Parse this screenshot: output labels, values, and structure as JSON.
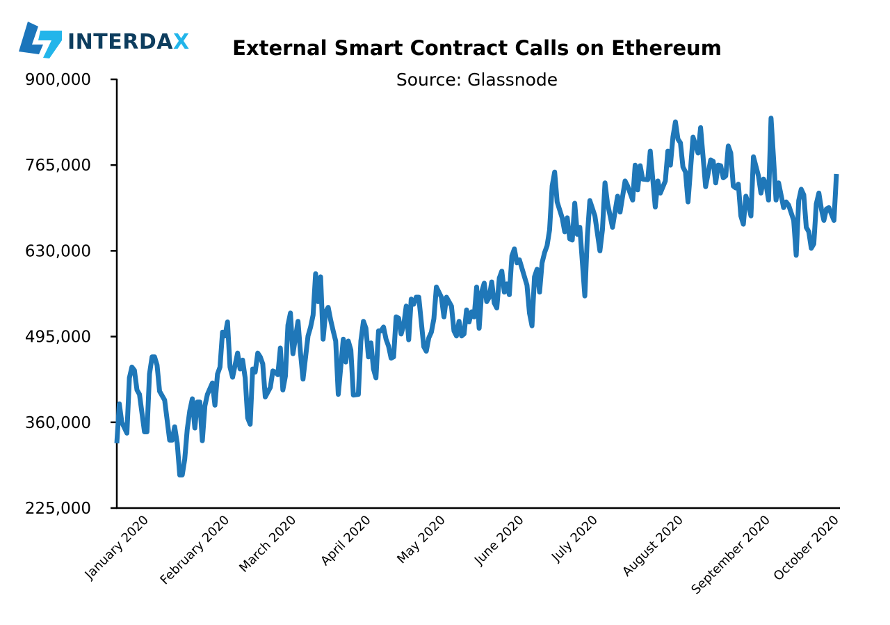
{
  "logo": {
    "text": "INTERDAX",
    "main_color": "#0d3d5e",
    "accent_color": "#22b5ea",
    "mark_colors": [
      "#1b75bb",
      "#22b5ea"
    ]
  },
  "chart_data": {
    "type": "line",
    "title": "External Smart Contract Calls on Ethereum",
    "subtitle": "Source: Glassnode",
    "xlabel": "",
    "ylabel": "",
    "xlim": [
      "2020-01-01",
      "2020-10-13"
    ],
    "ylim": [
      225000,
      900000
    ],
    "yticks": [
      225000,
      360000,
      495000,
      630000,
      765000,
      900000
    ],
    "ytick_labels": [
      "225,000",
      "360,000",
      "495,000",
      "630,000",
      "765,000",
      "900,000"
    ],
    "xticks": [
      "2020-01-01",
      "2020-02-01",
      "2020-03-01",
      "2020-04-01",
      "2020-05-01",
      "2020-06-01",
      "2020-07-01",
      "2020-08-01",
      "2020-09-01",
      "2020-10-01"
    ],
    "xtick_labels": [
      "January 2020",
      "February 2020",
      "March 2020",
      "April 2020",
      "May 2020",
      "June 2020",
      "July 2020",
      "August 2020",
      "September 2020",
      "October 2020"
    ],
    "grid": false,
    "legend": "none",
    "line_color": "#1f77b8",
    "series": [
      {
        "points": [
          [
            "2020-01-01",
            327000
          ],
          [
            "2020-01-02",
            389000
          ],
          [
            "2020-01-03",
            360000
          ],
          [
            "2020-01-05",
            343000
          ],
          [
            "2020-01-06",
            430000
          ],
          [
            "2020-01-07",
            447000
          ],
          [
            "2020-01-08",
            442000
          ],
          [
            "2020-01-09",
            411000
          ],
          [
            "2020-01-10",
            404000
          ],
          [
            "2020-01-12",
            345000
          ],
          [
            "2020-01-13",
            345000
          ],
          [
            "2020-01-14",
            436000
          ],
          [
            "2020-01-15",
            463000
          ],
          [
            "2020-01-16",
            463000
          ],
          [
            "2020-01-17",
            450000
          ],
          [
            "2020-01-18",
            409000
          ],
          [
            "2020-01-20",
            395000
          ],
          [
            "2020-01-22",
            332000
          ],
          [
            "2020-01-23",
            332000
          ],
          [
            "2020-01-24",
            353000
          ],
          [
            "2020-01-25",
            327000
          ],
          [
            "2020-01-26",
            277000
          ],
          [
            "2020-01-27",
            277000
          ],
          [
            "2020-01-28",
            302000
          ],
          [
            "2020-01-29",
            349000
          ],
          [
            "2020-01-30",
            378000
          ],
          [
            "2020-01-31",
            397000
          ],
          [
            "2020-02-01",
            351000
          ],
          [
            "2020-02-02",
            392000
          ],
          [
            "2020-02-03",
            392000
          ],
          [
            "2020-02-04",
            331000
          ],
          [
            "2020-02-05",
            386000
          ],
          [
            "2020-02-06",
            404000
          ],
          [
            "2020-02-08",
            422000
          ],
          [
            "2020-02-09",
            387000
          ],
          [
            "2020-02-10",
            436000
          ],
          [
            "2020-02-11",
            447000
          ],
          [
            "2020-02-12",
            502000
          ],
          [
            "2020-02-13",
            496000
          ],
          [
            "2020-02-14",
            518000
          ],
          [
            "2020-02-15",
            447000
          ],
          [
            "2020-02-16",
            431000
          ],
          [
            "2020-02-18",
            469000
          ],
          [
            "2020-02-19",
            444000
          ],
          [
            "2020-02-20",
            458000
          ],
          [
            "2020-02-21",
            430000
          ],
          [
            "2020-02-22",
            367000
          ],
          [
            "2020-02-23",
            357000
          ],
          [
            "2020-02-24",
            444000
          ],
          [
            "2020-02-25",
            439000
          ],
          [
            "2020-02-26",
            469000
          ],
          [
            "2020-02-27",
            463000
          ],
          [
            "2020-02-28",
            452000
          ],
          [
            "2020-02-29",
            400000
          ],
          [
            "2020-03-02",
            415000
          ],
          [
            "2020-03-03",
            441000
          ],
          [
            "2020-03-04",
            439000
          ],
          [
            "2020-03-05",
            435000
          ],
          [
            "2020-03-06",
            477000
          ],
          [
            "2020-03-07",
            411000
          ],
          [
            "2020-03-08",
            433000
          ],
          [
            "2020-03-09",
            513000
          ],
          [
            "2020-03-10",
            532000
          ],
          [
            "2020-03-11",
            468000
          ],
          [
            "2020-03-13",
            519000
          ],
          [
            "2020-03-14",
            469000
          ],
          [
            "2020-03-15",
            428000
          ],
          [
            "2020-03-17",
            496000
          ],
          [
            "2020-03-18",
            510000
          ],
          [
            "2020-03-19",
            529000
          ],
          [
            "2020-03-20",
            594000
          ],
          [
            "2020-03-21",
            550000
          ],
          [
            "2020-03-22",
            589000
          ],
          [
            "2020-03-23",
            491000
          ],
          [
            "2020-03-24",
            534000
          ],
          [
            "2020-03-25",
            541000
          ],
          [
            "2020-03-26",
            521000
          ],
          [
            "2020-03-27",
            504000
          ],
          [
            "2020-03-28",
            488000
          ],
          [
            "2020-03-29",
            404000
          ],
          [
            "2020-03-31",
            491000
          ],
          [
            "2020-04-01",
            455000
          ],
          [
            "2020-04-02",
            488000
          ],
          [
            "2020-04-03",
            474000
          ],
          [
            "2020-04-04",
            403000
          ],
          [
            "2020-04-06",
            404000
          ],
          [
            "2020-04-07",
            488000
          ],
          [
            "2020-04-08",
            519000
          ],
          [
            "2020-04-09",
            508000
          ],
          [
            "2020-04-10",
            463000
          ],
          [
            "2020-04-11",
            485000
          ],
          [
            "2020-04-12",
            444000
          ],
          [
            "2020-04-13",
            430000
          ],
          [
            "2020-04-14",
            504000
          ],
          [
            "2020-04-15",
            504000
          ],
          [
            "2020-04-16",
            510000
          ],
          [
            "2020-04-17",
            491000
          ],
          [
            "2020-04-18",
            480000
          ],
          [
            "2020-04-19",
            461000
          ],
          [
            "2020-04-20",
            463000
          ],
          [
            "2020-04-21",
            526000
          ],
          [
            "2020-04-22",
            524000
          ],
          [
            "2020-04-23",
            499000
          ],
          [
            "2020-04-24",
            513000
          ],
          [
            "2020-04-25",
            543000
          ],
          [
            "2020-04-26",
            490000
          ],
          [
            "2020-04-27",
            554000
          ],
          [
            "2020-04-28",
            546000
          ],
          [
            "2020-04-29",
            557000
          ],
          [
            "2020-04-30",
            557000
          ],
          [
            "2020-05-02",
            479000
          ],
          [
            "2020-05-03",
            472000
          ],
          [
            "2020-05-04",
            493000
          ],
          [
            "2020-05-05",
            502000
          ],
          [
            "2020-05-06",
            523000
          ],
          [
            "2020-05-07",
            573000
          ],
          [
            "2020-05-09",
            557000
          ],
          [
            "2020-05-10",
            526000
          ],
          [
            "2020-05-11",
            557000
          ],
          [
            "2020-05-13",
            543000
          ],
          [
            "2020-05-14",
            504000
          ],
          [
            "2020-05-15",
            496000
          ],
          [
            "2020-05-16",
            519000
          ],
          [
            "2020-05-17",
            496000
          ],
          [
            "2020-05-18",
            499000
          ],
          [
            "2020-05-19",
            537000
          ],
          [
            "2020-05-20",
            518000
          ],
          [
            "2020-05-21",
            534000
          ],
          [
            "2020-05-22",
            526000
          ],
          [
            "2020-05-23",
            573000
          ],
          [
            "2020-05-24",
            508000
          ],
          [
            "2020-05-25",
            565000
          ],
          [
            "2020-05-26",
            579000
          ],
          [
            "2020-05-27",
            550000
          ],
          [
            "2020-05-28",
            557000
          ],
          [
            "2020-05-29",
            581000
          ],
          [
            "2020-05-30",
            548000
          ],
          [
            "2020-05-31",
            540000
          ],
          [
            "2020-06-01",
            587000
          ],
          [
            "2020-06-02",
            598000
          ],
          [
            "2020-06-03",
            565000
          ],
          [
            "2020-06-04",
            578000
          ],
          [
            "2020-06-05",
            561000
          ],
          [
            "2020-06-06",
            622000
          ],
          [
            "2020-06-07",
            633000
          ],
          [
            "2020-06-08",
            611000
          ],
          [
            "2020-06-09",
            616000
          ],
          [
            "2020-06-12",
            576000
          ],
          [
            "2020-06-13",
            532000
          ],
          [
            "2020-06-14",
            512000
          ],
          [
            "2020-06-15",
            589000
          ],
          [
            "2020-06-16",
            601000
          ],
          [
            "2020-06-17",
            565000
          ],
          [
            "2020-06-18",
            611000
          ],
          [
            "2020-06-19",
            627000
          ],
          [
            "2020-06-20",
            638000
          ],
          [
            "2020-06-21",
            663000
          ],
          [
            "2020-06-22",
            732000
          ],
          [
            "2020-06-23",
            754000
          ],
          [
            "2020-06-24",
            707000
          ],
          [
            "2020-06-26",
            682000
          ],
          [
            "2020-06-27",
            660000
          ],
          [
            "2020-06-28",
            682000
          ],
          [
            "2020-06-29",
            649000
          ],
          [
            "2020-06-30",
            647000
          ],
          [
            "2020-07-01",
            705000
          ],
          [
            "2020-07-02",
            656000
          ],
          [
            "2020-07-03",
            667000
          ],
          [
            "2020-07-05",
            559000
          ],
          [
            "2020-07-06",
            652000
          ],
          [
            "2020-07-07",
            709000
          ],
          [
            "2020-07-09",
            685000
          ],
          [
            "2020-07-11",
            630000
          ],
          [
            "2020-07-12",
            663000
          ],
          [
            "2020-07-13",
            737000
          ],
          [
            "2020-07-14",
            705000
          ],
          [
            "2020-07-16",
            667000
          ],
          [
            "2020-07-18",
            716000
          ],
          [
            "2020-07-19",
            691000
          ],
          [
            "2020-07-21",
            740000
          ],
          [
            "2020-07-22",
            732000
          ],
          [
            "2020-07-24",
            710000
          ],
          [
            "2020-07-25",
            765000
          ],
          [
            "2020-07-26",
            726000
          ],
          [
            "2020-07-27",
            764000
          ],
          [
            "2020-07-28",
            743000
          ],
          [
            "2020-07-30",
            742000
          ],
          [
            "2020-07-31",
            787000
          ],
          [
            "2020-08-02",
            699000
          ],
          [
            "2020-08-03",
            740000
          ],
          [
            "2020-08-04",
            721000
          ],
          [
            "2020-08-06",
            740000
          ],
          [
            "2020-08-07",
            787000
          ],
          [
            "2020-08-08",
            765000
          ],
          [
            "2020-08-09",
            809000
          ],
          [
            "2020-08-10",
            833000
          ],
          [
            "2020-08-11",
            806000
          ],
          [
            "2020-08-12",
            800000
          ],
          [
            "2020-08-13",
            762000
          ],
          [
            "2020-08-14",
            754000
          ],
          [
            "2020-08-15",
            707000
          ],
          [
            "2020-08-17",
            809000
          ],
          [
            "2020-08-19",
            784000
          ],
          [
            "2020-08-20",
            824000
          ],
          [
            "2020-08-22",
            731000
          ],
          [
            "2020-08-24",
            773000
          ],
          [
            "2020-08-25",
            771000
          ],
          [
            "2020-08-26",
            737000
          ],
          [
            "2020-08-27",
            765000
          ],
          [
            "2020-08-28",
            764000
          ],
          [
            "2020-08-29",
            745000
          ],
          [
            "2020-08-30",
            748000
          ],
          [
            "2020-08-31",
            795000
          ],
          [
            "2020-09-01",
            784000
          ],
          [
            "2020-09-02",
            732000
          ],
          [
            "2020-09-03",
            729000
          ],
          [
            "2020-09-04",
            735000
          ],
          [
            "2020-09-05",
            685000
          ],
          [
            "2020-09-06",
            672000
          ],
          [
            "2020-09-07",
            716000
          ],
          [
            "2020-09-08",
            704000
          ],
          [
            "2020-09-09",
            685000
          ],
          [
            "2020-09-10",
            778000
          ],
          [
            "2020-09-12",
            748000
          ],
          [
            "2020-09-13",
            721000
          ],
          [
            "2020-09-14",
            743000
          ],
          [
            "2020-09-15",
            735000
          ],
          [
            "2020-09-16",
            710000
          ],
          [
            "2020-09-17",
            839000
          ],
          [
            "2020-09-18",
            776000
          ],
          [
            "2020-09-19",
            710000
          ],
          [
            "2020-09-20",
            737000
          ],
          [
            "2020-09-22",
            698000
          ],
          [
            "2020-09-23",
            707000
          ],
          [
            "2020-09-24",
            702000
          ],
          [
            "2020-09-26",
            678000
          ],
          [
            "2020-09-27",
            623000
          ],
          [
            "2020-09-28",
            709000
          ],
          [
            "2020-09-29",
            727000
          ],
          [
            "2020-09-30",
            718000
          ],
          [
            "2020-10-01",
            667000
          ],
          [
            "2020-10-02",
            660000
          ],
          [
            "2020-10-03",
            634000
          ],
          [
            "2020-10-04",
            641000
          ],
          [
            "2020-10-05",
            704000
          ],
          [
            "2020-10-06",
            721000
          ],
          [
            "2020-10-07",
            696000
          ],
          [
            "2020-10-08",
            678000
          ],
          [
            "2020-10-09",
            696000
          ],
          [
            "2020-10-10",
            698000
          ],
          [
            "2020-10-12",
            678000
          ],
          [
            "2020-10-13",
            751000
          ]
        ]
      }
    ]
  }
}
